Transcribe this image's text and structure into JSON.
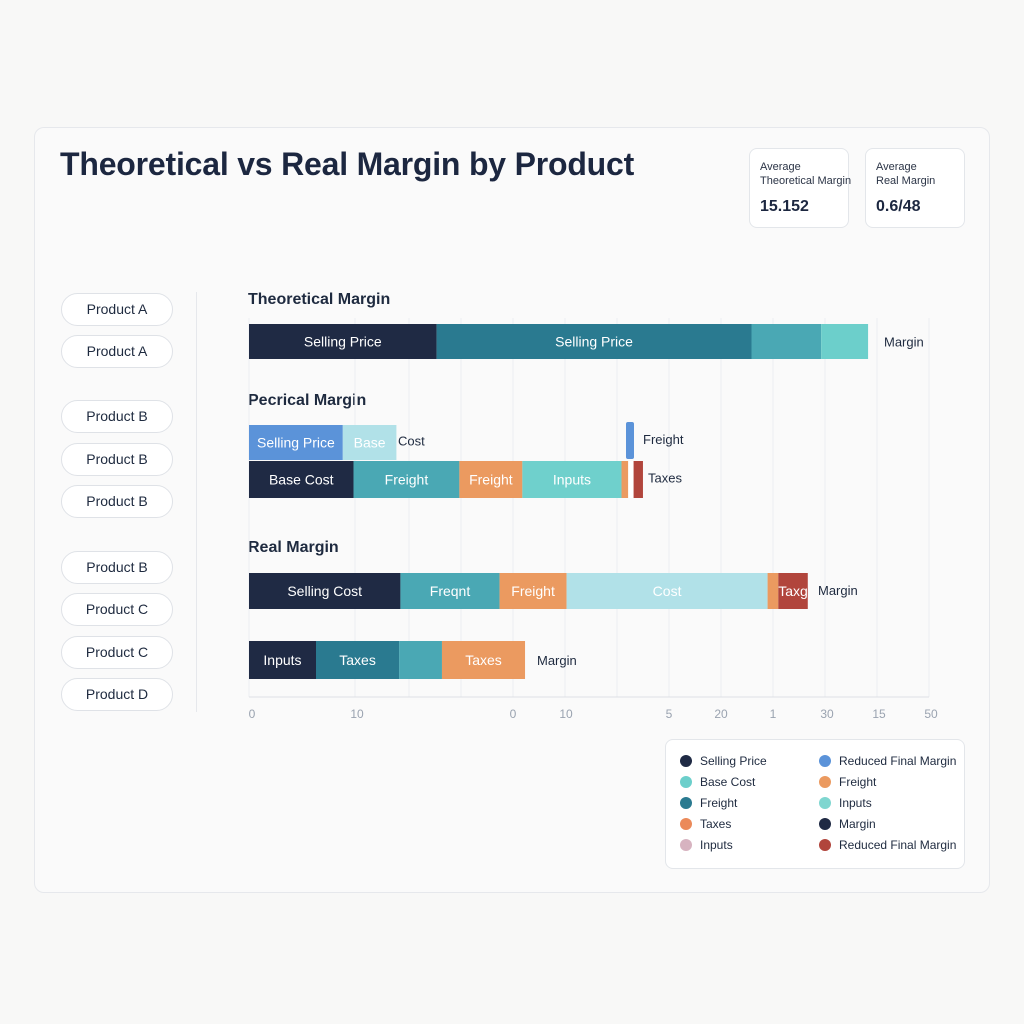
{
  "title": "Theoretical vs Real Margin by Product",
  "kpis": [
    {
      "line1": "Average",
      "line2": "Theoretical Margin",
      "value": "15.152"
    },
    {
      "line1": "Average",
      "line2": "Real Margin",
      "value": "0.6/48"
    }
  ],
  "products": [
    "Product A",
    "Product A",
    "Product B",
    "Product B",
    "Product B",
    "Product B",
    "Product C",
    "Product C",
    "Product D"
  ],
  "sections": [
    "Theoretical Margin",
    "Pecrical Margin",
    "Real Margin"
  ],
  "colors": {
    "navy": "#1f2a44",
    "teal_dark": "#2a7a90",
    "teal": "#4aa8b4",
    "teal_light": "#6ccfcb",
    "aqua": "#6fd0cc",
    "pale": "#b1e1e8",
    "blue": "#5b93d9",
    "orange": "#eb9a60",
    "red": "#b1453c",
    "pink": "#d7b3c0"
  },
  "chart_data": {
    "type": "bar",
    "orientation": "horizontal",
    "stacked": true,
    "x_ticks": [
      "0",
      "10",
      "0",
      "10",
      "5",
      "20",
      "1",
      "30",
      "15",
      "50"
    ],
    "bars": [
      {
        "group": "Theoretical Margin",
        "end_label": "Margin",
        "segments": [
          {
            "label": "Selling Price",
            "value": 14,
            "color": "#1f2a44",
            "text_color": "#ffffff"
          },
          {
            "label": "Selling Price",
            "value": 23.5,
            "color": "#2a7a90",
            "text_color": "#ffffff"
          },
          {
            "label": "",
            "value": 5.2,
            "color": "#4aa8b4",
            "text_color": "#ffffff"
          },
          {
            "label": "",
            "value": 3.5,
            "color": "#6ccfcb",
            "text_color": "#ffffff"
          }
        ]
      },
      {
        "group": "Pecrical Margin",
        "end_label": "Cost",
        "segments": [
          {
            "label": "Selling Price",
            "value": 7,
            "color": "#5b93d9",
            "text_color": "#ffffff"
          },
          {
            "label": "Base",
            "value": 4,
            "color": "#b1e1e8",
            "text_color": "#ffffff"
          }
        ]
      },
      {
        "group": "Pecrical Margin",
        "end_label": "Taxes",
        "segments": [
          {
            "label": "Base Cost",
            "value": 7.8,
            "color": "#1f2a44",
            "text_color": "#ffffff"
          },
          {
            "label": "Freight",
            "value": 7.9,
            "color": "#4aa8b4",
            "text_color": "#ffffff"
          },
          {
            "label": "Freight",
            "value": 4.7,
            "color": "#eb9a60",
            "text_color": "#ffffff"
          },
          {
            "label": "Inputs",
            "value": 7.4,
            "color": "#6fd0cc",
            "text_color": "#ffffff"
          },
          {
            "label": "",
            "value": 0.5,
            "color": "#eb9a60",
            "text_color": "#ffffff"
          },
          {
            "label": "",
            "value": 0.4,
            "color": "#ffffff",
            "text_color": "#ffffff"
          },
          {
            "label": "",
            "value": 0.7,
            "color": "#b1453c",
            "text_color": "#ffffff"
          }
        ]
      },
      {
        "group": "Real Margin",
        "end_label": "Margin",
        "segments": [
          {
            "label": "Selling Cost",
            "value": 11.3,
            "color": "#1f2a44",
            "text_color": "#ffffff"
          },
          {
            "label": "Freqnt",
            "value": 7.4,
            "color": "#4aa8b4",
            "text_color": "#ffffff"
          },
          {
            "label": "Freight",
            "value": 5,
            "color": "#eb9a60",
            "text_color": "#ffffff"
          },
          {
            "label": "Cost",
            "value": 15,
            "color": "#b1e1e8",
            "text_color": "#ffffff"
          },
          {
            "label": "",
            "value": 0.8,
            "color": "#eb9a60",
            "text_color": "#ffffff"
          },
          {
            "label": "Taxg",
            "value": 2.2,
            "color": "#b1453c",
            "text_color": "#ffffff"
          }
        ]
      },
      {
        "group": "Real Margin",
        "end_label": "Margin",
        "segments": [
          {
            "label": "Inputs",
            "value": 5,
            "color": "#1f2a44",
            "text_color": "#ffffff"
          },
          {
            "label": "Taxes",
            "value": 6.2,
            "color": "#2a7a90",
            "text_color": "#ffffff"
          },
          {
            "label": "",
            "value": 3.2,
            "color": "#4aa8b4",
            "text_color": "#ffffff"
          },
          {
            "label": "Taxes",
            "value": 6.2,
            "color": "#eb9a60",
            "text_color": "#ffffff"
          }
        ]
      }
    ],
    "marker": {
      "label": "Freight",
      "color": "#5b93d9"
    },
    "legend": [
      {
        "label": "Selling Price",
        "color": "#1f2a44"
      },
      {
        "label": "Base Cost",
        "color": "#6ccfcb"
      },
      {
        "label": "Freight",
        "color": "#2a7a90"
      },
      {
        "label": "Taxes",
        "color": "#eb8a5a"
      },
      {
        "label": "Inputs",
        "color": "#d7b3c0"
      },
      {
        "label": "Reduced Final Margin",
        "color": "#5b93d9"
      },
      {
        "label": "Freight",
        "color": "#eb9a60"
      },
      {
        "label": "Inputs",
        "color": "#7fd6d0"
      },
      {
        "label": "Margin",
        "color": "#1f2a44"
      },
      {
        "label": "Reduced Final Margin",
        "color": "#b1453c"
      }
    ]
  }
}
